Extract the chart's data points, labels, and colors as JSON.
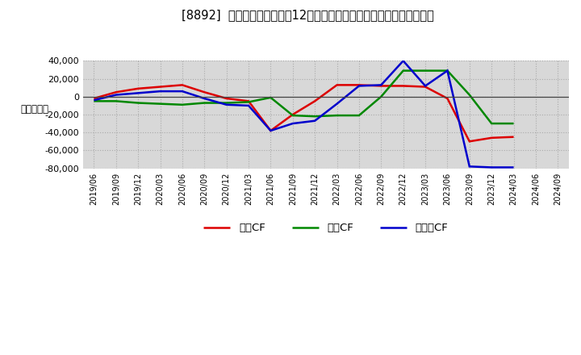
{
  "title": "[8892]  キャッシュフローの12か月移動合計の対前年同期増減額の推移",
  "ylabel": "（百万円）",
  "background_color": "#ffffff",
  "grid_color": "#aaaaaa",
  "plot_bg_color": "#d8d8d8",
  "dates": [
    "2019/06",
    "2019/09",
    "2019/12",
    "2020/03",
    "2020/06",
    "2020/09",
    "2020/12",
    "2021/03",
    "2021/06",
    "2021/09",
    "2021/12",
    "2022/03",
    "2022/06",
    "2022/09",
    "2022/12",
    "2023/03",
    "2023/06",
    "2023/09",
    "2023/12",
    "2024/03",
    "2024/06",
    "2024/09"
  ],
  "operating_cf": [
    -2000,
    5000,
    9000,
    11000,
    13000,
    5000,
    -2000,
    -5000,
    -38000,
    -20000,
    -5000,
    13000,
    13000,
    12000,
    12000,
    11000,
    -2000,
    -50000,
    -46000,
    -45000,
    null,
    null
  ],
  "investing_cf": [
    -5000,
    -5000,
    -7000,
    -8000,
    -9000,
    -7000,
    -7000,
    -6000,
    -1000,
    -21000,
    -22000,
    -21000,
    -21000,
    0,
    29000,
    29000,
    29000,
    2000,
    -30000,
    -30000,
    null,
    null
  ],
  "free_cf": [
    -4000,
    2000,
    4000,
    6000,
    6000,
    -2000,
    -9000,
    -10000,
    -38000,
    -30000,
    -27000,
    -8000,
    12000,
    13000,
    40000,
    12000,
    29000,
    -78000,
    -79000,
    -79000,
    null,
    null
  ],
  "operating_color": "#dd0000",
  "investing_color": "#008800",
  "free_color": "#0000cc",
  "ylim": [
    -80000,
    40000
  ],
  "yticks": [
    -80000,
    -60000,
    -40000,
    -20000,
    0,
    20000,
    40000
  ],
  "legend_labels": [
    "営業CF",
    "投資CF",
    "フリーCF"
  ]
}
